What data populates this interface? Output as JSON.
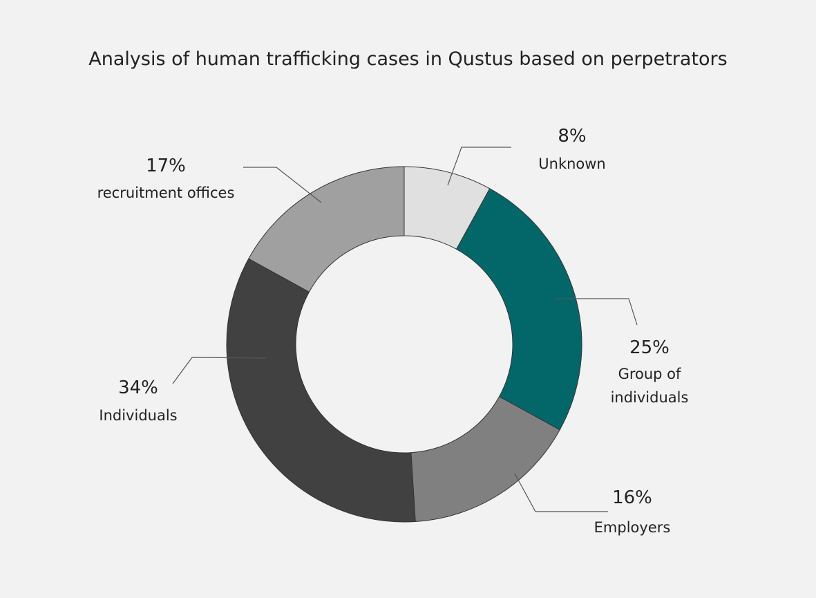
{
  "chart_data": {
    "type": "donut",
    "title": "Analysis of human trafficking cases in Qustus based on perpetrators",
    "categories": [
      "Unknown",
      "Group of individuals",
      "Employers",
      "Individuals",
      "recruitment offices"
    ],
    "values": [
      8,
      25,
      16,
      34,
      17
    ],
    "value_labels": [
      "8%",
      "25%",
      "16%",
      "34%",
      "17%"
    ],
    "colors": [
      "#e0e0e0",
      "#03676a",
      "#808080",
      "#414141",
      "#a0a0a0"
    ]
  }
}
